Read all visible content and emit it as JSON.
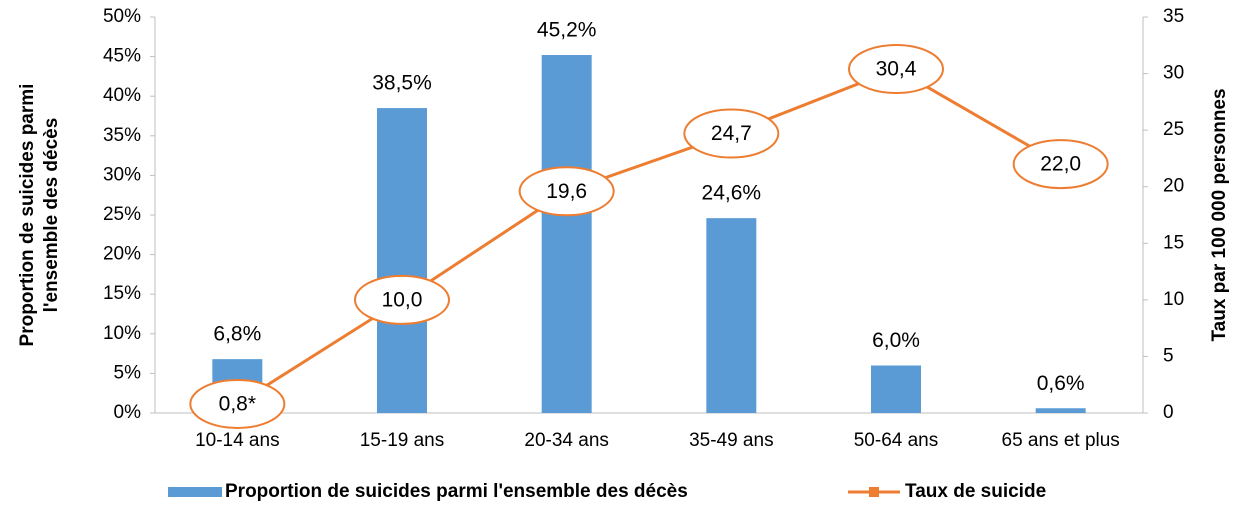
{
  "chart_data": {
    "type": "bar",
    "categories": [
      "10-14 ans",
      "15-19 ans",
      "20-34 ans",
      "35-49 ans",
      "50-64 ans",
      "65 ans et plus"
    ],
    "series": [
      {
        "name": "Proportion de suicides parmi l'ensemble des décès",
        "type": "bar",
        "color": "#5b9bd5",
        "axis": "y",
        "values": [
          6.8,
          38.5,
          45.2,
          24.6,
          6.0,
          0.6
        ],
        "value_labels": [
          "6,8%",
          "38,5%",
          "45,2%",
          "24,6%",
          "6,0%",
          "0,6%"
        ]
      },
      {
        "name": "Taux de suicide",
        "type": "line",
        "color": "#ed7d31",
        "axis": "y2",
        "values": [
          0.8,
          10.0,
          19.6,
          24.7,
          30.4,
          22.0
        ],
        "value_labels": [
          "0,8*",
          "10,0",
          "19,6",
          "24,7",
          "30,4",
          "22,0"
        ]
      }
    ],
    "y_label": [
      "Proportion de suicides parmi",
      "l'ensemble des décès"
    ],
    "y2_label": "Taux par 100 000 personnes",
    "ylim": [
      0,
      50
    ],
    "yticks": [
      {
        "value": 0,
        "label": "0%"
      },
      {
        "value": 5,
        "label": "5%"
      },
      {
        "value": 10,
        "label": "10%"
      },
      {
        "value": 15,
        "label": "15%"
      },
      {
        "value": 20,
        "label": "20%"
      },
      {
        "value": 25,
        "label": "25%"
      },
      {
        "value": 30,
        "label": "30%"
      },
      {
        "value": 35,
        "label": "35%"
      },
      {
        "value": 40,
        "label": "40%"
      },
      {
        "value": 45,
        "label": "45%"
      },
      {
        "value": 50,
        "label": "50%"
      }
    ],
    "y2lim": [
      0,
      35
    ],
    "y2ticks": [
      0,
      5,
      10,
      15,
      20,
      25,
      30,
      35
    ],
    "legend": "bottom"
  }
}
